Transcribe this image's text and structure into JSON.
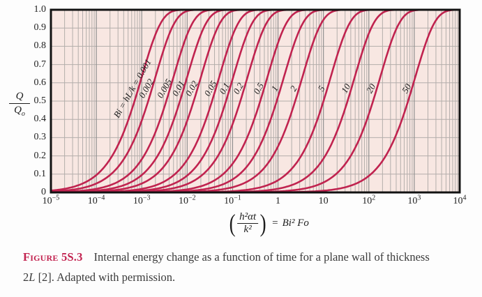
{
  "page": {
    "background": "#fdfdfd"
  },
  "chart_data": {
    "type": "line",
    "title": "",
    "x_scale": "log",
    "x_range_log10": [
      -5,
      4
    ],
    "y_range": [
      0,
      1
    ],
    "grid": true,
    "legend": "labels placed along curves",
    "ylabel": {
      "num": "Q",
      "den": "Q",
      "den_sub": "o"
    },
    "xlabel": {
      "lparen": "(",
      "num": "h²αt",
      "den": "k²",
      "rparen": ")",
      "eq": "=",
      "rhs": "Bi² Fo"
    },
    "x_ticks": [
      {
        "base": "10",
        "exp": "−5",
        "log10": -5
      },
      {
        "base": "10",
        "exp": "−4",
        "log10": -4
      },
      {
        "base": "10",
        "exp": "−3",
        "log10": -3
      },
      {
        "base": "10",
        "exp": "−2",
        "log10": -2
      },
      {
        "base": "10",
        "exp": "−1",
        "log10": -1
      },
      {
        "base": "1",
        "exp": "",
        "log10": 0
      },
      {
        "base": "10",
        "exp": "",
        "log10": 1
      },
      {
        "base": "10",
        "exp": "2",
        "log10": 2
      },
      {
        "base": "10",
        "exp": "3",
        "log10": 3
      },
      {
        "base": "10",
        "exp": "4",
        "log10": 4
      }
    ],
    "y_ticks": [
      {
        "label": "1.0",
        "value": 1.0
      },
      {
        "label": "0.9",
        "value": 0.9
      },
      {
        "label": "0.8",
        "value": 0.8
      },
      {
        "label": "0.7",
        "value": 0.7
      },
      {
        "label": "0.6",
        "value": 0.6
      },
      {
        "label": "0.5",
        "value": 0.5
      },
      {
        "label": "0.4",
        "value": 0.4
      },
      {
        "label": "0.3",
        "value": 0.3
      },
      {
        "label": "0.2",
        "value": 0.2
      },
      {
        "label": "0.1",
        "value": 0.1
      },
      {
        "label": "0",
        "value": 0.0
      }
    ],
    "curve_model": "Q/Qo = 1 - exp(-x/tau), x = (h^2*alpha*t)/k^2 = Bi^2*Fo; tau = Bi^2/zeta1^2 with zeta1*tan(zeta1)=Bi (plane wall)",
    "curves": [
      {
        "bi": "0.001",
        "label": "Bi = hL/k = 0.001",
        "tau": 0.001
      },
      {
        "bi": "0.002",
        "label": "0.002",
        "tau": 0.002
      },
      {
        "bi": "0.005",
        "label": "0.005",
        "tau": 0.005
      },
      {
        "bi": "0.01",
        "label": "0.01",
        "tau": 0.01
      },
      {
        "bi": "0.02",
        "label": "0.02",
        "tau": 0.0201
      },
      {
        "bi": "0.05",
        "label": "0.05",
        "tau": 0.0509
      },
      {
        "bi": "0.1",
        "label": "0.1",
        "tau": 0.1033
      },
      {
        "bi": "0.2",
        "label": "0.2",
        "tau": 0.2136
      },
      {
        "bi": "0.5",
        "label": "0.5",
        "tau": 0.5857
      },
      {
        "bi": "1",
        "label": "1",
        "tau": 1.351
      },
      {
        "bi": "2",
        "label": "2",
        "tau": 3.449
      },
      {
        "bi": "5",
        "label": "5",
        "tau": 14.48
      },
      {
        "bi": "10",
        "label": "10",
        "tau": 48.98
      },
      {
        "bi": "20",
        "label": "20",
        "tau": 178.7
      },
      {
        "bi": "50",
        "label": "50",
        "tau": 1054
      }
    ],
    "colors": {
      "curve": "#c0234f",
      "plot_bg": "#f8e7e2",
      "grid_major": "#8f8f8f",
      "grid_minor": "#b3aeab",
      "axis": "#121212",
      "tick_text": "#222222"
    }
  },
  "caption": {
    "label": "Figure 5S.3",
    "line1": "Internal energy change as a function of time for a plane wall of thickness",
    "line2_pre": "2",
    "line2_italic": "L",
    "line2_post": " [2]. Adapted with permission.",
    "label_color": "#c2224f"
  }
}
